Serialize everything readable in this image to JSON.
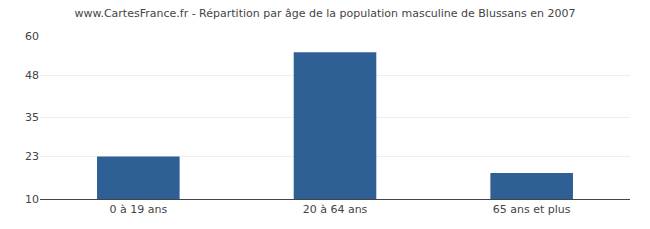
{
  "chart_data": {
    "type": "bar",
    "title": "www.CartesFrance.fr - Répartition par âge de la population masculine de Blussans en 2007",
    "categories": [
      "0 à 19 ans",
      "20 à 64 ans",
      "65 ans et plus"
    ],
    "values": [
      23,
      55,
      18
    ],
    "color": "#2e6095",
    "ylim": [
      10,
      60
    ],
    "yticks": [
      10,
      23,
      35,
      48,
      60
    ],
    "grid": true
  }
}
